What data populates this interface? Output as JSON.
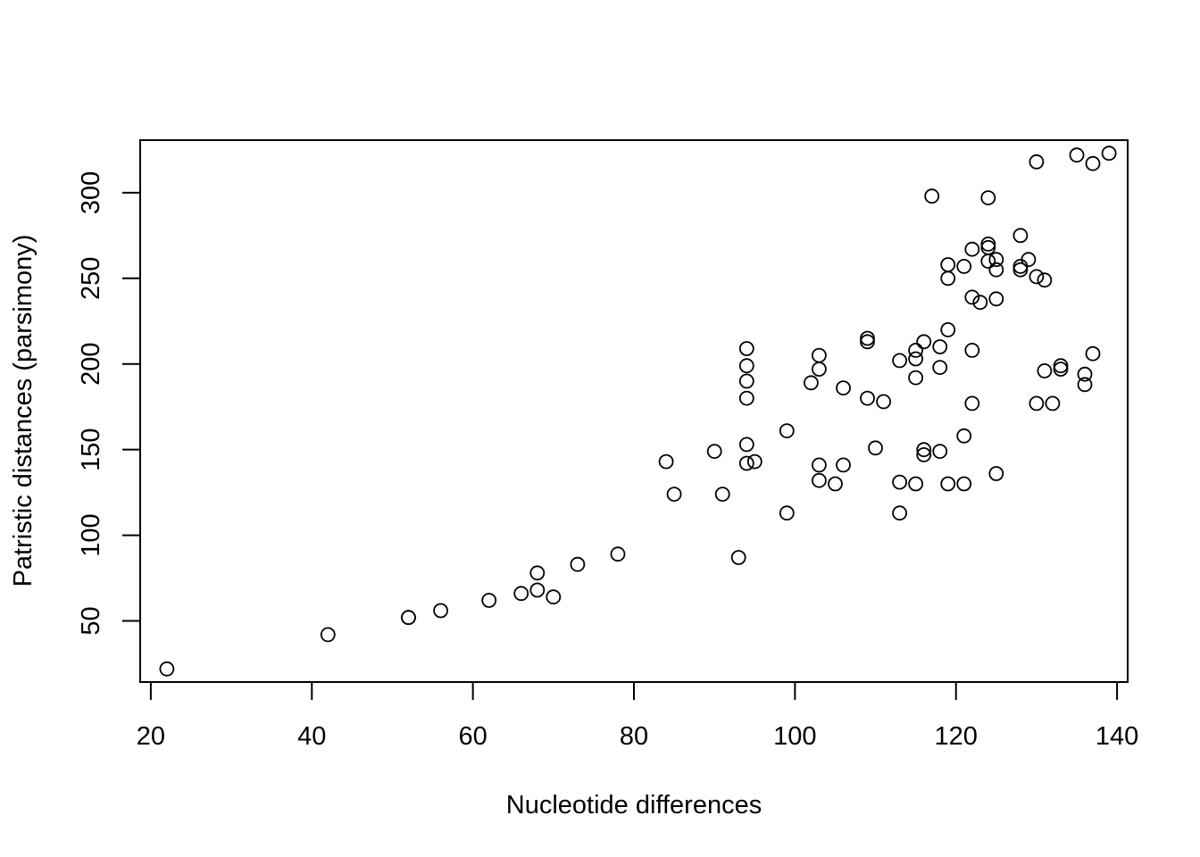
{
  "chart_data": {
    "type": "scatter",
    "title": "",
    "xlabel": "Nucleotide differences",
    "ylabel": "Patristic distances (parsimony)",
    "xlim": [
      18.68,
      141.32
    ],
    "ylim": [
      14.32,
      330.68
    ],
    "xticks": [
      20,
      40,
      60,
      80,
      100,
      120,
      140
    ],
    "yticks": [
      50,
      100,
      150,
      200,
      250,
      300
    ],
    "grid": false,
    "legend": "none",
    "marker": "open-circle",
    "color": "#000000",
    "points": [
      [
        22,
        22
      ],
      [
        42,
        42
      ],
      [
        52,
        52
      ],
      [
        52,
        52
      ],
      [
        56,
        56
      ],
      [
        62,
        62
      ],
      [
        66,
        66
      ],
      [
        68,
        78
      ],
      [
        68,
        68
      ],
      [
        70,
        64
      ],
      [
        73,
        83
      ],
      [
        78,
        89
      ],
      [
        84,
        143
      ],
      [
        85,
        124
      ],
      [
        90,
        149
      ],
      [
        91,
        124
      ],
      [
        93,
        87
      ],
      [
        94,
        209
      ],
      [
        94,
        199
      ],
      [
        94,
        190
      ],
      [
        94,
        180
      ],
      [
        94,
        153
      ],
      [
        94,
        142
      ],
      [
        95,
        143
      ],
      [
        99,
        161
      ],
      [
        99,
        113
      ],
      [
        102,
        189
      ],
      [
        103,
        205
      ],
      [
        103,
        197
      ],
      [
        103,
        141
      ],
      [
        103,
        132
      ],
      [
        105,
        130
      ],
      [
        106,
        186
      ],
      [
        106,
        141
      ],
      [
        109,
        215
      ],
      [
        109,
        213
      ],
      [
        109,
        180
      ],
      [
        110,
        151
      ],
      [
        111,
        178
      ],
      [
        113,
        202
      ],
      [
        113,
        131
      ],
      [
        113,
        113
      ],
      [
        115,
        208
      ],
      [
        115,
        203
      ],
      [
        115,
        192
      ],
      [
        115,
        130
      ],
      [
        116,
        213
      ],
      [
        116,
        150
      ],
      [
        116,
        147
      ],
      [
        117,
        298
      ],
      [
        118,
        210
      ],
      [
        118,
        198
      ],
      [
        118,
        149
      ],
      [
        119,
        258
      ],
      [
        119,
        250
      ],
      [
        119,
        220
      ],
      [
        119,
        130
      ],
      [
        121,
        257
      ],
      [
        121,
        158
      ],
      [
        121,
        130
      ],
      [
        122,
        267
      ],
      [
        122,
        239
      ],
      [
        122,
        208
      ],
      [
        122,
        177
      ],
      [
        123,
        236
      ],
      [
        124,
        297
      ],
      [
        124,
        270
      ],
      [
        124,
        268
      ],
      [
        124,
        260
      ],
      [
        125,
        261
      ],
      [
        125,
        255
      ],
      [
        125,
        238
      ],
      [
        125,
        136
      ],
      [
        128,
        275
      ],
      [
        128,
        257
      ],
      [
        128,
        255
      ],
      [
        129,
        261
      ],
      [
        130,
        318
      ],
      [
        130,
        251
      ],
      [
        130,
        177
      ],
      [
        131,
        249
      ],
      [
        131,
        196
      ],
      [
        132,
        177
      ],
      [
        133,
        199
      ],
      [
        133,
        197
      ],
      [
        135,
        322
      ],
      [
        136,
        194
      ],
      [
        136,
        188
      ],
      [
        137,
        317
      ],
      [
        137,
        206
      ],
      [
        139,
        323
      ]
    ]
  }
}
